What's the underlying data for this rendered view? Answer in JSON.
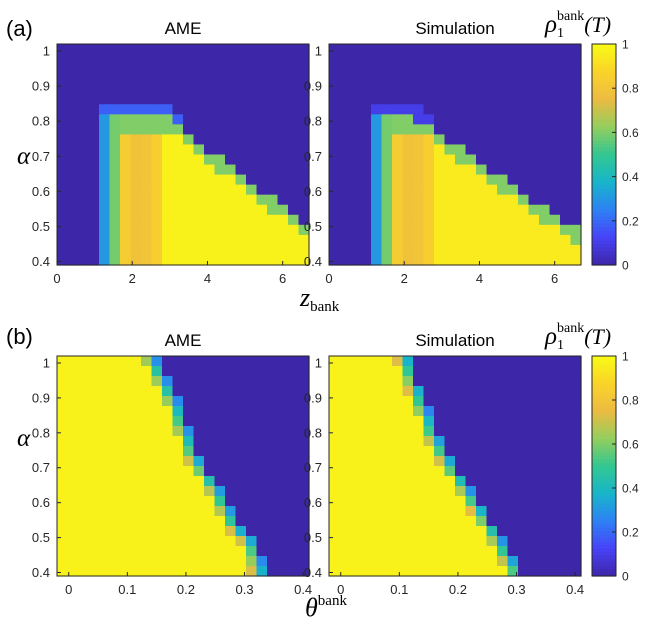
{
  "chart_data": [
    {
      "type": "heatmap",
      "panel_label": "(a)",
      "title": "AME",
      "x_ticks": [
        0,
        2,
        4,
        6
      ],
      "xlim": [
        0,
        6.7
      ],
      "y_ticks": [
        0.4,
        0.5,
        0.6,
        0.7,
        0.8,
        0.9,
        1
      ],
      "ylim": [
        0.39,
        1.02
      ],
      "value_range": [
        0,
        1
      ],
      "surface": "spreading-step",
      "params": {
        "z_low": 1.3,
        "ridge_top": 0.8,
        "z_ridge": 2.9,
        "z_edge_low": 6.6,
        "y_edge_low": 0.5,
        "interior": 0.97,
        "halo": 0.18
      }
    },
    {
      "type": "heatmap",
      "title": "Simulation",
      "x_ticks": [
        0,
        2,
        4,
        6
      ],
      "xlim": [
        0,
        6.7
      ],
      "y_ticks": [
        0.4,
        0.5,
        0.6,
        0.7,
        0.8,
        0.9,
        1
      ],
      "ylim": [
        0.39,
        1.02
      ],
      "value_range": [
        0,
        1
      ],
      "surface": "spreading-step",
      "params": {
        "z_low": 1.3,
        "ridge_top": 0.8,
        "z_ridge": 2.3,
        "z_edge_low": 6.7,
        "y_edge_low": 0.47,
        "interior": 0.95,
        "halo": 0.1
      }
    },
    {
      "type": "heatmap",
      "panel_label": "(b)",
      "title": "AME",
      "x_ticks": [
        0,
        0.1,
        0.2,
        0.3,
        0.4
      ],
      "xlim": [
        -0.02,
        0.41
      ],
      "y_ticks": [
        0.4,
        0.5,
        0.6,
        0.7,
        0.8,
        0.9,
        1
      ],
      "ylim": [
        0.39,
        1.02
      ],
      "value_range": [
        0,
        1
      ],
      "surface": "threshold-boundary",
      "boundary": {
        "y": [
          0.39,
          0.48,
          0.53,
          0.58,
          0.63,
          0.73,
          0.89,
          1.02
        ],
        "x": [
          0.325,
          0.31,
          0.28,
          0.265,
          0.25,
          0.21,
          0.175,
          0.135
        ]
      }
    },
    {
      "type": "heatmap",
      "title": "Simulation",
      "x_ticks": [
        0,
        0.1,
        0.2,
        0.3,
        0.4
      ],
      "xlim": [
        -0.02,
        0.41
      ],
      "y_ticks": [
        0.4,
        0.5,
        0.6,
        0.7,
        0.8,
        0.9,
        1
      ],
      "ylim": [
        0.39,
        1.02
      ],
      "value_range": [
        0,
        1
      ],
      "surface": "threshold-boundary",
      "boundary": {
        "y": [
          0.39,
          0.5,
          0.6,
          0.7,
          0.8,
          0.9,
          1.02
        ],
        "x": [
          0.3,
          0.262,
          0.225,
          0.185,
          0.152,
          0.13,
          0.105
        ]
      }
    }
  ],
  "labels": {
    "alpha": "α",
    "x_label_a": "z",
    "x_label_a_sub": "bank",
    "x_label_b": "θ",
    "x_label_b_sup": "bank",
    "colorbar_rho": "ρ",
    "colorbar_sub": "1",
    "colorbar_sup": "bank",
    "colorbar_arg": "(T)"
  },
  "colorbar": {
    "ticks": [
      0,
      0.2,
      0.4,
      0.6,
      0.8,
      1
    ],
    "colormap": [
      "#3e26a8",
      "#4743f8",
      "#2d82f4",
      "#18b5ca",
      "#33c791",
      "#94ce5d",
      "#edbb41",
      "#f9d429",
      "#f9fb15"
    ]
  }
}
